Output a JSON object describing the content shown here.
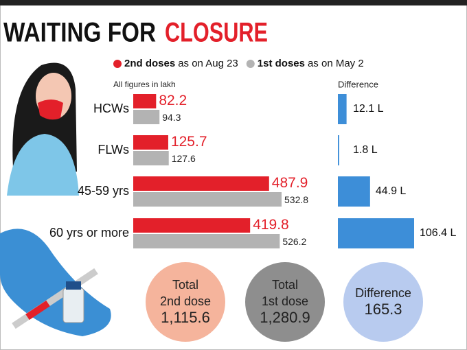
{
  "chart_data": [
    {
      "type": "bar",
      "title": [
        "WAITING FOR",
        "CLOSURE"
      ],
      "note": "All figures in lakh",
      "categories": [
        "HCWs",
        "FLWs",
        "45-59 yrs",
        "60 yrs or more"
      ],
      "series": [
        {
          "name": "2nd doses",
          "date_note": "as on Aug 23",
          "color": "#e3202a",
          "values": [
            82.2,
            125.7,
            487.9,
            419.8
          ]
        },
        {
          "name": "1st doses",
          "date_note": "as on May 2",
          "color": "#b3b3b3",
          "values": [
            94.3,
            127.6,
            532.8,
            526.2
          ]
        }
      ]
    },
    {
      "type": "bar",
      "title": "Difference",
      "color": "#3d8ed8",
      "values": [
        12.1,
        1.8,
        44.9,
        106.4
      ],
      "value_labels": [
        "12.1 L",
        "1.8 L",
        "44.9 L",
        "106.4 L"
      ]
    },
    {
      "type": "circle",
      "items": [
        {
          "labels": [
            "Total",
            "2nd dose"
          ],
          "value": 1115.6,
          "value_label": "1,115.6",
          "color": "#f5b49c"
        },
        {
          "labels": [
            "Total",
            "1st dose"
          ],
          "value": 1280.9,
          "value_label": "1,280.9",
          "color": "#8e8e8e"
        },
        {
          "labels": [
            "Difference"
          ],
          "value": 165.3,
          "color": "#b8cbef"
        }
      ]
    }
  ]
}
